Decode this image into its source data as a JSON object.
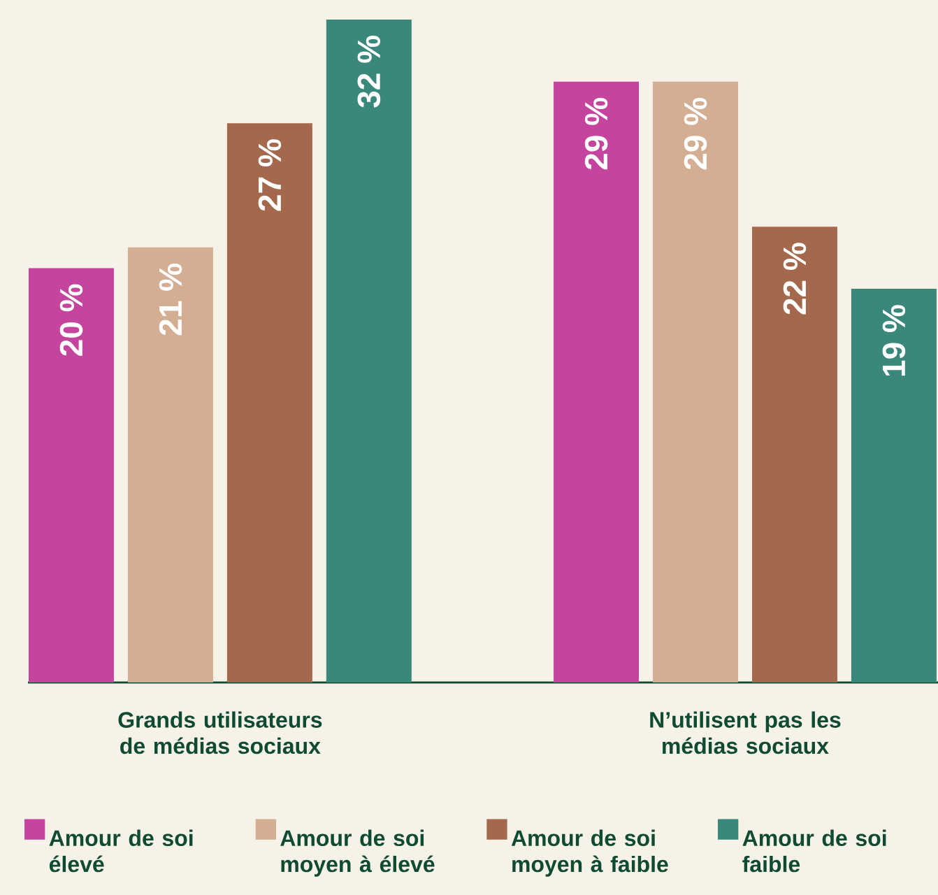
{
  "chart_data": {
    "type": "bar",
    "categories": [
      "Grands utilisateurs de médias sociaux",
      "N’utilisent pas les médias sociaux"
    ],
    "series": [
      {
        "name": "Amour de soi élevé",
        "color": "#c4449e",
        "values": [
          20,
          29
        ],
        "value_labels": [
          "20 %",
          "29 %"
        ]
      },
      {
        "name": "Amour de soi moyen à élevé",
        "color": "#d4ae92",
        "values": [
          21,
          29
        ],
        "value_labels": [
          "21 %",
          "29 %"
        ]
      },
      {
        "name": "Amour de soi moyen à faible",
        "color": "#a4694c",
        "values": [
          27,
          22
        ],
        "value_labels": [
          "27 %",
          "22 %"
        ]
      },
      {
        "name": "Amour de soi faible",
        "color": "#3a877c",
        "values": [
          32,
          19
        ],
        "value_labels": [
          "32 %",
          "19 %"
        ]
      }
    ],
    "legend": "bottom",
    "grid": false,
    "tick_labels": "x"
  }
}
